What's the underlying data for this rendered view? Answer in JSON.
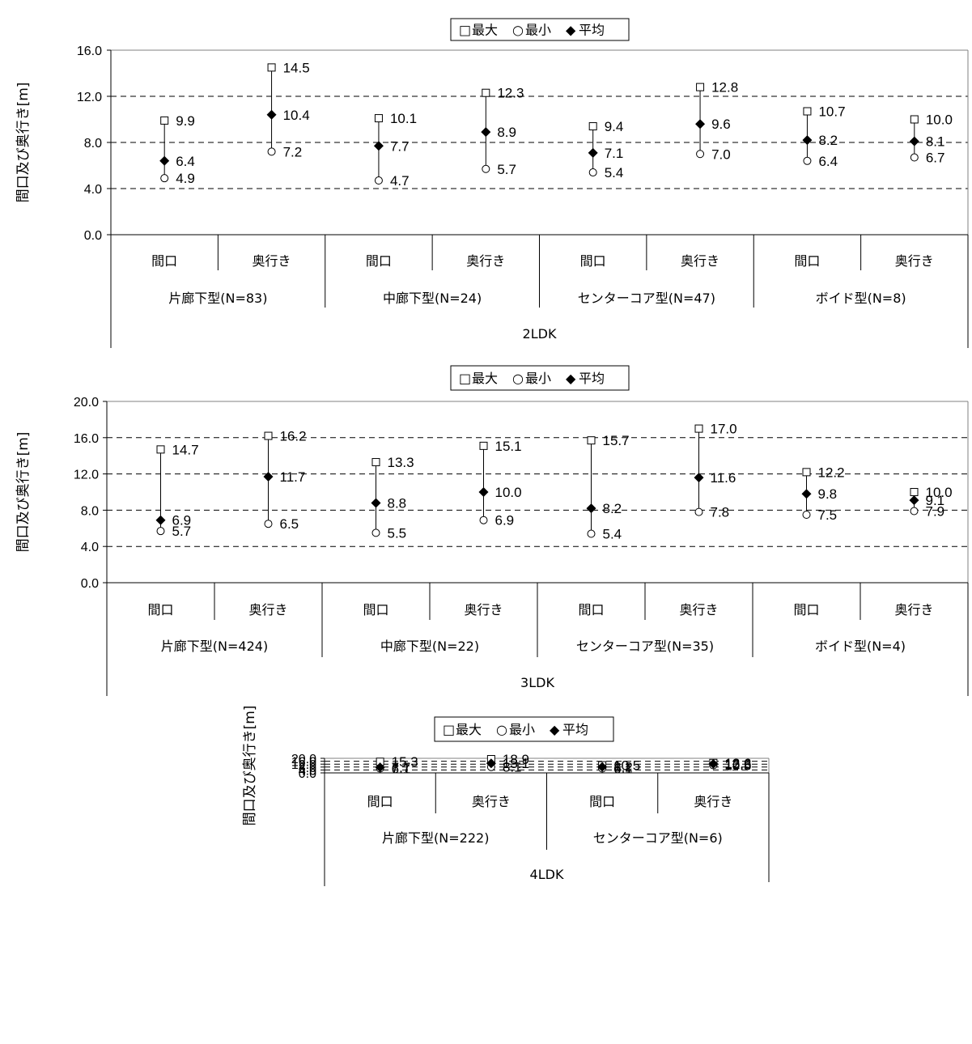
{
  "chart_data": [
    {
      "type": "scatter",
      "title": "",
      "ylabel": "間口及び奥行き[m]",
      "ylim": [
        0,
        16
      ],
      "yticks": [
        "0.0",
        "4.0",
        "8.0",
        "12.0",
        "16.0"
      ],
      "legend": {
        "position": "top-center",
        "max": "最大",
        "min": "最小",
        "avg": "平均"
      },
      "legend_symbols": {
        "max": "□",
        "min": "○",
        "avg": "◆"
      },
      "grid": true,
      "level1": [
        "間口",
        "奥行き",
        "間口",
        "奥行き",
        "間口",
        "奥行き",
        "間口",
        "奥行き"
      ],
      "level2": [
        "片廊下型(N=83)",
        "中廊下型(N=24)",
        "センターコア型(N=47)",
        "ボイド型(N=8)"
      ],
      "level3": "2LDK",
      "series": [
        {
          "name": "最大",
          "values": [
            9.9,
            14.5,
            10.1,
            12.3,
            9.4,
            12.8,
            10.7,
            10.0
          ],
          "labels": [
            "9.9",
            "14.5",
            "10.1",
            "12.3",
            "9.4",
            "12.8",
            "10.7",
            "10.0"
          ]
        },
        {
          "name": "最小",
          "values": [
            4.9,
            7.2,
            4.7,
            5.7,
            5.4,
            7.0,
            6.4,
            6.7
          ],
          "labels": [
            "4.9",
            "7.2",
            "4.7",
            "5.7",
            "5.4",
            "7.0",
            "6.4",
            "6.7"
          ]
        },
        {
          "name": "平均",
          "values": [
            6.4,
            10.4,
            7.7,
            8.9,
            7.1,
            9.6,
            8.2,
            8.1
          ],
          "labels": [
            "6.4",
            "10.4",
            "7.7",
            "8.9",
            "7.1",
            "9.6",
            "8.2",
            "8.1"
          ]
        }
      ]
    },
    {
      "type": "scatter",
      "title": "",
      "ylabel": "間口及び奥行き[m]",
      "ylim": [
        0,
        20
      ],
      "yticks": [
        "0.0",
        "4.0",
        "8.0",
        "12.0",
        "16.0",
        "20.0"
      ],
      "legend": {
        "position": "top-center",
        "max": "最大",
        "min": "最小",
        "avg": "平均"
      },
      "legend_symbols": {
        "max": "□",
        "min": "○",
        "avg": "◆"
      },
      "grid": true,
      "level1": [
        "間口",
        "奥行き",
        "間口",
        "奥行き",
        "間口",
        "奥行き",
        "間口",
        "奥行き"
      ],
      "level2": [
        "片廊下型(N=424)",
        "中廊下型(N=22)",
        "センターコア型(N=35)",
        "ボイド型(N=4)"
      ],
      "level3": "3LDK",
      "series": [
        {
          "name": "最大",
          "values": [
            14.7,
            16.2,
            13.3,
            15.1,
            15.7,
            17.0,
            12.2,
            10.0
          ],
          "labels": [
            "14.7",
            "16.2",
            "13.3",
            "15.1",
            "15.7",
            "17.0",
            "12.2",
            "10.0"
          ]
        },
        {
          "name": "最小",
          "values": [
            5.7,
            6.5,
            5.5,
            6.9,
            5.4,
            7.8,
            7.5,
            7.9
          ],
          "labels": [
            "5.7",
            "6.5",
            "5.5",
            "6.9",
            "5.4",
            "7.8",
            "7.5",
            "7.9"
          ]
        },
        {
          "name": "平均",
          "values": [
            6.9,
            11.7,
            8.8,
            10.0,
            8.2,
            11.6,
            9.8,
            9.1
          ],
          "labels": [
            "6.9",
            "11.7",
            "8.8",
            "10.0",
            "8.2",
            "11.6",
            "9.8",
            "9.1"
          ]
        }
      ]
    },
    {
      "type": "scatter",
      "title": "",
      "ylabel": "間口及び奥行き[m]",
      "ylim": [
        0,
        20
      ],
      "yticks": [
        "0.0",
        "4.0",
        "8.0",
        "12.0",
        "16.0",
        "20.0"
      ],
      "legend": {
        "position": "top-center",
        "max": "最大",
        "min": "最小",
        "avg": "平均"
      },
      "legend_symbols": {
        "max": "□",
        "min": "○",
        "avg": "◆"
      },
      "grid": true,
      "level1": [
        "間口",
        "奥行き",
        "間口",
        "奥行き"
      ],
      "level2": [
        "片廊下型(N=222)",
        "センターコア型(N=6)"
      ],
      "level3": "4LDK",
      "series": [
        {
          "name": "最大",
          "values": [
            15.3,
            18.9,
            10.5,
            13.6
          ],
          "labels": [
            "15.3",
            "18.9",
            "10.5",
            "13.6"
          ]
        },
        {
          "name": "最小",
          "values": [
            6.1,
            8.1,
            6.1,
            10.5
          ],
          "labels": [
            "6.1",
            "8.1",
            "6.1",
            "10.5"
          ]
        },
        {
          "name": "平均",
          "values": [
            7.7,
            13.1,
            8.2,
            12.3
          ],
          "labels": [
            "7.7",
            "13.1",
            "8.2",
            "12.3"
          ]
        }
      ]
    }
  ]
}
